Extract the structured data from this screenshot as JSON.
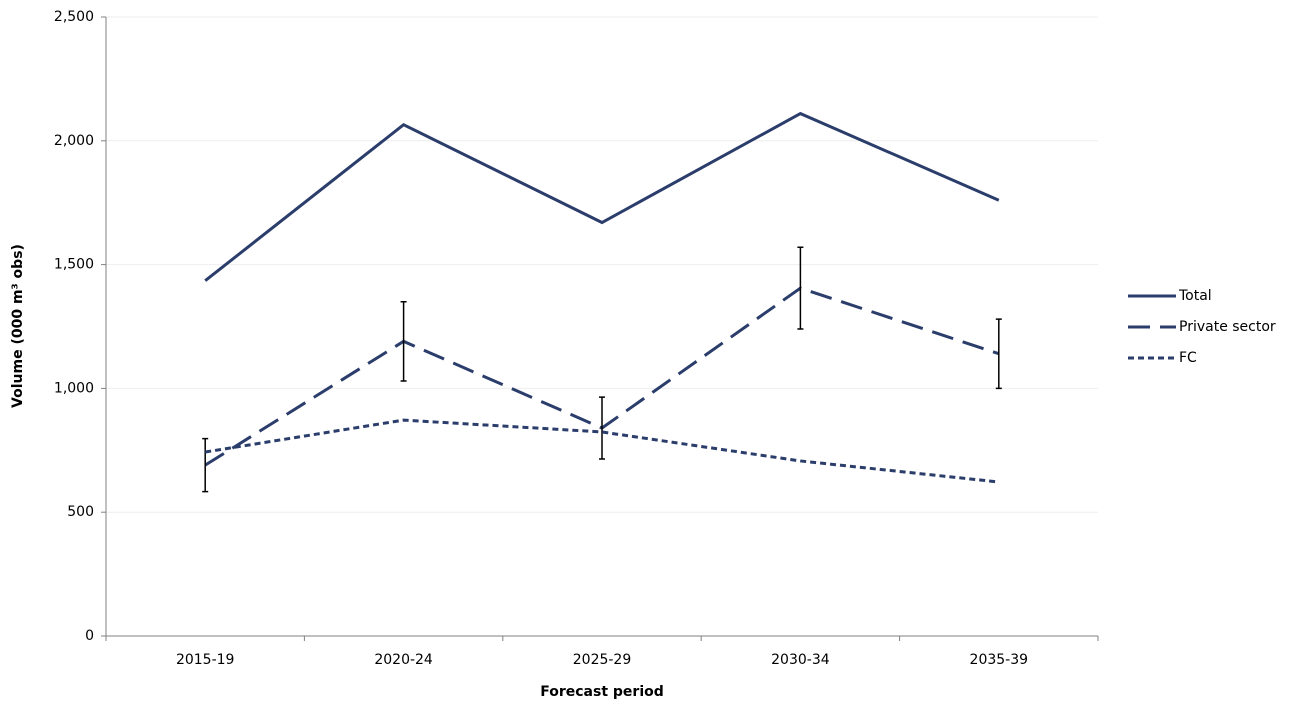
{
  "chart_data": {
    "type": "line",
    "x_label": "Forecast period",
    "y_label": "Volume (000 m³ obs)",
    "categories": [
      "2015-19",
      "2020-24",
      "2025-29",
      "2030-34",
      "2035-39"
    ],
    "ylim": [
      0,
      2500
    ],
    "yticks": [
      0,
      500,
      {
        "value": 1000,
        "label": "1,000"
      },
      {
        "value": 1500,
        "label": "1,500"
      },
      {
        "value": 2000,
        "label": "2,000"
      },
      {
        "value": 2500,
        "label": "2,500"
      }
    ],
    "grid": true,
    "legend": "right",
    "series": [
      {
        "name": "Total",
        "color": "#2b3d6b",
        "dash": "solid",
        "values": [
          1435,
          2065,
          1670,
          2110,
          1760
        ]
      },
      {
        "name": "Private sector",
        "color": "#2b3d6b",
        "dash": "long",
        "values": [
          690,
          1190,
          840,
          1405,
          1140
        ],
        "errors": [
          107,
          160,
          125,
          165,
          140
        ]
      },
      {
        "name": "FC",
        "color": "#2b3d6b",
        "dash": "short",
        "values": [
          743,
          872,
          824,
          707,
          622
        ]
      }
    ]
  }
}
